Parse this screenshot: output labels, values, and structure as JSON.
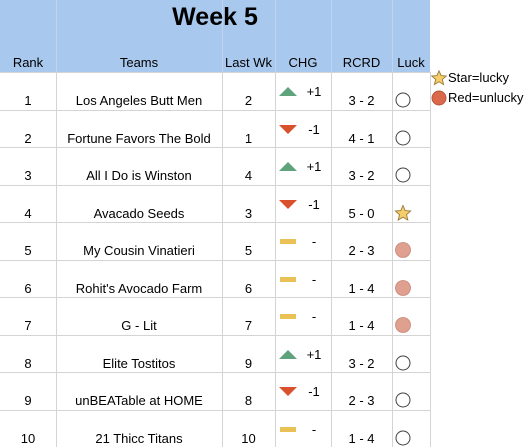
{
  "sheet": {
    "title": "Week 5",
    "headers": {
      "rank": "Rank",
      "teams": "Teams",
      "last_wk": "Last Wk",
      "chg": "CHG",
      "rcrd": "RCRD",
      "luck": "Luck"
    },
    "rows": [
      {
        "rank": "1",
        "team": "Los Angeles Butt Men",
        "last_wk": "2",
        "chg_icon": "up-triangle-icon",
        "chg": "+1",
        "rcrd": "3 - 2",
        "luck_icon": "empty-circle-icon"
      },
      {
        "rank": "2",
        "team": "Fortune Favors The Bold",
        "last_wk": "1",
        "chg_icon": "down-triangle-icon",
        "chg": "-1",
        "rcrd": "4 - 1",
        "luck_icon": "empty-circle-icon"
      },
      {
        "rank": "3",
        "team": "All I Do is Winston",
        "last_wk": "4",
        "chg_icon": "up-triangle-icon",
        "chg": "+1",
        "rcrd": "3 - 2",
        "luck_icon": "empty-circle-icon"
      },
      {
        "rank": "4",
        "team": "Avacado Seeds",
        "last_wk": "3",
        "chg_icon": "down-triangle-icon",
        "chg": "-1",
        "rcrd": "5 - 0",
        "luck_icon": "star-icon"
      },
      {
        "rank": "5",
        "team": "My Cousin Vinatieri",
        "last_wk": "5",
        "chg_icon": "dash-bar-icon",
        "chg": "-",
        "rcrd": "2 - 3",
        "luck_icon": "red-circle-icon"
      },
      {
        "rank": "6",
        "team": "Rohit's Avocado Farm",
        "last_wk": "6",
        "chg_icon": "dash-bar-icon",
        "chg": "-",
        "rcrd": "1 - 4",
        "luck_icon": "red-circle-icon"
      },
      {
        "rank": "7",
        "team": "G - Lit",
        "last_wk": "7",
        "chg_icon": "dash-bar-icon",
        "chg": "-",
        "rcrd": "1 - 4",
        "luck_icon": "red-circle-icon"
      },
      {
        "rank": "8",
        "team": "Elite Tostitos",
        "last_wk": "9",
        "chg_icon": "up-triangle-icon",
        "chg": "+1",
        "rcrd": "3 - 2",
        "luck_icon": "empty-circle-icon"
      },
      {
        "rank": "9",
        "team": "unBEATable at HOME",
        "last_wk": "8",
        "chg_icon": "down-triangle-icon",
        "chg": "-1",
        "rcrd": "2 - 3",
        "luck_icon": "empty-circle-icon"
      },
      {
        "rank": "10",
        "team": "21 Thicc Titans",
        "last_wk": "10",
        "chg_icon": "dash-bar-icon",
        "chg": "-",
        "rcrd": "1 - 4",
        "luck_icon": "empty-circle-icon"
      }
    ]
  },
  "legend": {
    "lucky": "Star=lucky",
    "unlucky": "Red=unlucky",
    "lucky_icon": "star-icon",
    "unlucky_icon": "red-circle-icon"
  },
  "colors": {
    "header_band": "#a9c8ee",
    "up_triangle": "#5fa37c",
    "down_triangle": "#d8502c",
    "dash_bar": "#eac155",
    "red_circle_fill": "#e0a090",
    "red_circle_stroke": "#c88575",
    "star_fill": "#f5cd6a",
    "star_stroke": "#9a7a3a",
    "legend_red_fill": "#d9694a",
    "gridline": "#d4d4d4"
  }
}
